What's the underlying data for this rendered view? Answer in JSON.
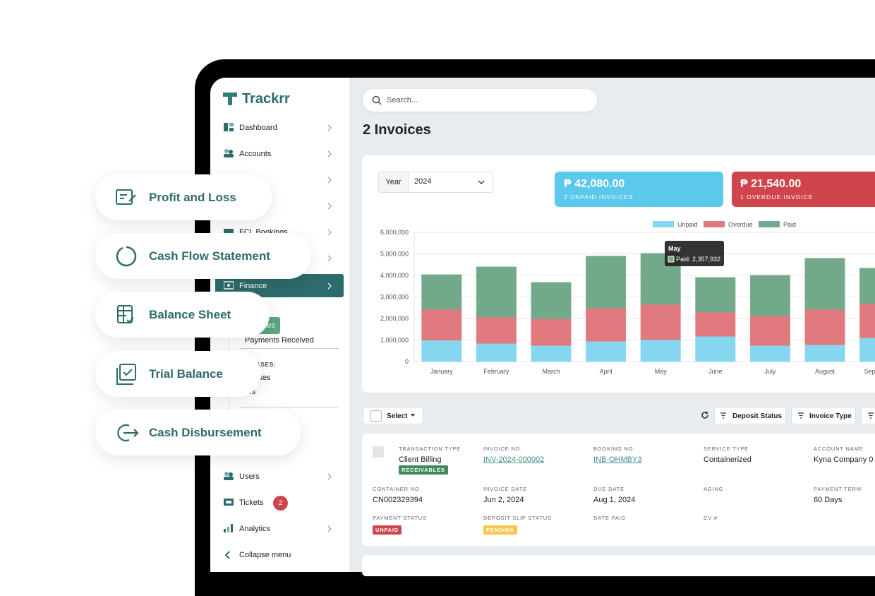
{
  "brand": "Trackrr",
  "floating_menu": [
    "Profit and Loss",
    "Cash Flow Statement",
    "Balance Sheet",
    "Trial Balance",
    "Cash Disbursement"
  ],
  "sidebar": {
    "nav_top": [
      "Dashboard",
      "Accounts",
      "FCL Bookings"
    ],
    "active": "Finance",
    "sub_active": "Invoices",
    "sub_items": [
      "Payments Received"
    ],
    "purchases_heading": "PURCHASES:",
    "purchases": [
      "Expenses",
      "Bills"
    ],
    "nav_bottom": [
      "Users",
      "Tickets",
      "Analytics"
    ],
    "tickets_badge": "2",
    "collapse": "Collapse menu"
  },
  "search_placeholder": "Search...",
  "page_title": "2 Invoices",
  "year_filter": {
    "label": "Year",
    "value": "2024"
  },
  "summary": [
    {
      "amount": "₱ 42,080.00",
      "label": "2 UNPAID INVOICES",
      "color": "#5bc8ec"
    },
    {
      "amount": "₱ 21,540.00",
      "label": "1 OVERDUE INVOICE",
      "color": "#d0454c"
    }
  ],
  "chart": {
    "type": "bar",
    "stacked": true,
    "categories": [
      "January",
      "February",
      "March",
      "April",
      "May",
      "June",
      "July",
      "August",
      "September"
    ],
    "series": [
      {
        "name": "Unpaid",
        "color": "#86d6f0",
        "values": [
          1000000,
          850000,
          750000,
          950000,
          1020000,
          1180000,
          750000,
          790000,
          1110000
        ]
      },
      {
        "name": "Overdue",
        "color": "#e07a7e",
        "values": [
          1430000,
          1220000,
          1250000,
          1540000,
          1640000,
          1120000,
          1380000,
          1640000,
          1580000
        ]
      },
      {
        "name": "Paid",
        "color": "#72a98a",
        "values": [
          1600000,
          2320000,
          1670000,
          2400000,
          2357932,
          1600000,
          1870000,
          2360000,
          1640000
        ]
      }
    ],
    "ylim": [
      0,
      6000000
    ],
    "yticks": [
      0,
      {
        "value": 1000000,
        "label": "1,000,000"
      },
      {
        "value": 2000000,
        "label": "2,000,000"
      },
      {
        "value": 3000000,
        "label": "3,000,000"
      },
      {
        "value": 4000000,
        "label": "4,000,000"
      },
      {
        "value": 5000000,
        "label": "5,000,000"
      },
      {
        "value": 6000000,
        "label": "6,000,000"
      }
    ],
    "grid": true,
    "legend": "top",
    "tooltip": {
      "title": "May",
      "label": "Paid: 2,357,932"
    }
  },
  "toolbar": {
    "select": "Select",
    "filters": [
      "Deposit Status",
      "Invoice Type"
    ]
  },
  "invoice": {
    "fields": [
      {
        "label": "TRANSACTION TYPE",
        "value": "Client Billing",
        "badge": {
          "text": "RECEIVABLES",
          "color": "#3f8a5a"
        }
      },
      {
        "label": "INVOICE NO.",
        "value": "INV-2024-000002",
        "link": true
      },
      {
        "label": "BOOKING NO.",
        "value": "INB-OHMBY3",
        "link": true
      },
      {
        "label": "SERVICE TYPE",
        "value": "Containerized"
      },
      {
        "label": "ACCOUNT NAME",
        "value": "Kyna Company 0"
      },
      {
        "label": "CONTAINER NO.",
        "value": "CN002329394"
      },
      {
        "label": "INVOICE DATE",
        "value": "Jun 2, 2024"
      },
      {
        "label": "DUE DATE",
        "value": "Aug 1, 2024"
      },
      {
        "label": "AGING"
      },
      {
        "label": "PAYMENT TERM",
        "value": "60 Days"
      },
      {
        "label": "PAYMENT STATUS",
        "badge": {
          "text": "UNPAID",
          "color": "#d0454c"
        }
      },
      {
        "label": "DEPOSIT SLIP STATUS",
        "badge": {
          "text": "PENDING",
          "color": "#f5c84c"
        }
      },
      {
        "label": "DATE PAID"
      },
      {
        "label": "CV #"
      }
    ]
  }
}
